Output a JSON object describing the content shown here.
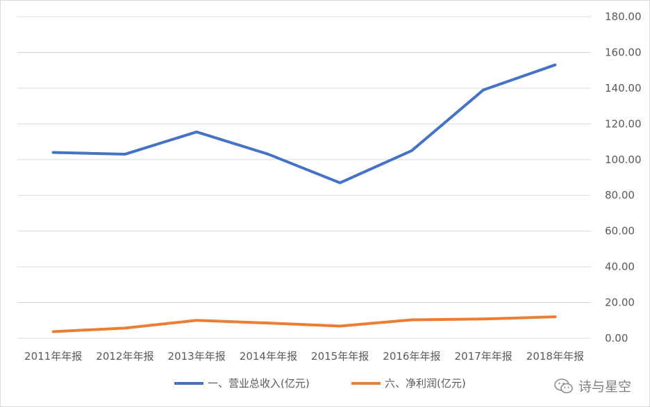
{
  "chart_data": {
    "type": "line",
    "categories": [
      "2011年年报",
      "2012年年报",
      "2013年年报",
      "2014年年报",
      "2015年年报",
      "2016年年报",
      "2017年年报",
      "2018年年报"
    ],
    "series": [
      {
        "name": "一、营业总收入(亿元)",
        "color": "#4472c4",
        "values": [
          104,
          103,
          115.5,
          103,
          87,
          105,
          139,
          153
        ]
      },
      {
        "name": "六、净利润(亿元)",
        "color": "#ed7d31",
        "values": [
          3.7,
          5.7,
          10,
          8.5,
          6.8,
          10.3,
          10.8,
          12
        ]
      }
    ],
    "ylim": [
      0,
      180
    ],
    "yticks": [
      "0.00",
      "20.00",
      "40.00",
      "60.00",
      "80.00",
      "100.00",
      "120.00",
      "140.00",
      "160.00",
      "180.00"
    ],
    "y_axis_side": "right",
    "grid": true,
    "legend_position": "bottom"
  },
  "watermark": {
    "text": "诗与星空",
    "icon": "wechat-icon"
  }
}
